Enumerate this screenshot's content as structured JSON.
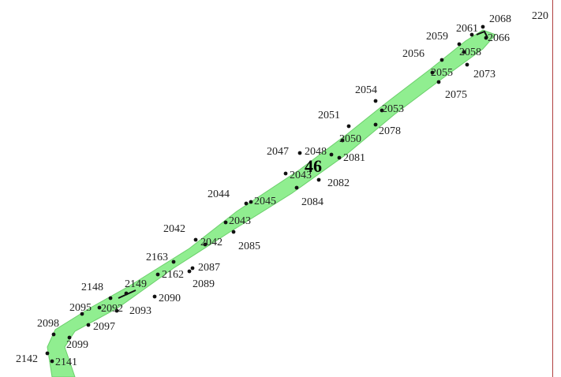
{
  "map": {
    "parcel_id": "46",
    "corridor_color": "#90ee90",
    "point_color": "#111111",
    "edge_label": "220",
    "labels": [
      "2068",
      "2061",
      "2059",
      "2066",
      "2056",
      "2058",
      "2055",
      "2073",
      "2054",
      "2075",
      "2053",
      "2051",
      "2078",
      "2050",
      "2047",
      "2048",
      "2081",
      "2043",
      "2082",
      "2044",
      "2045",
      "2084",
      "2042",
      "2043",
      "2042",
      "2085",
      "2163",
      "2087",
      "2162",
      "2148",
      "2149",
      "2089",
      "2090",
      "2095",
      "2092",
      "2093",
      "2097",
      "2098",
      "2099",
      "2142",
      "2141"
    ]
  }
}
